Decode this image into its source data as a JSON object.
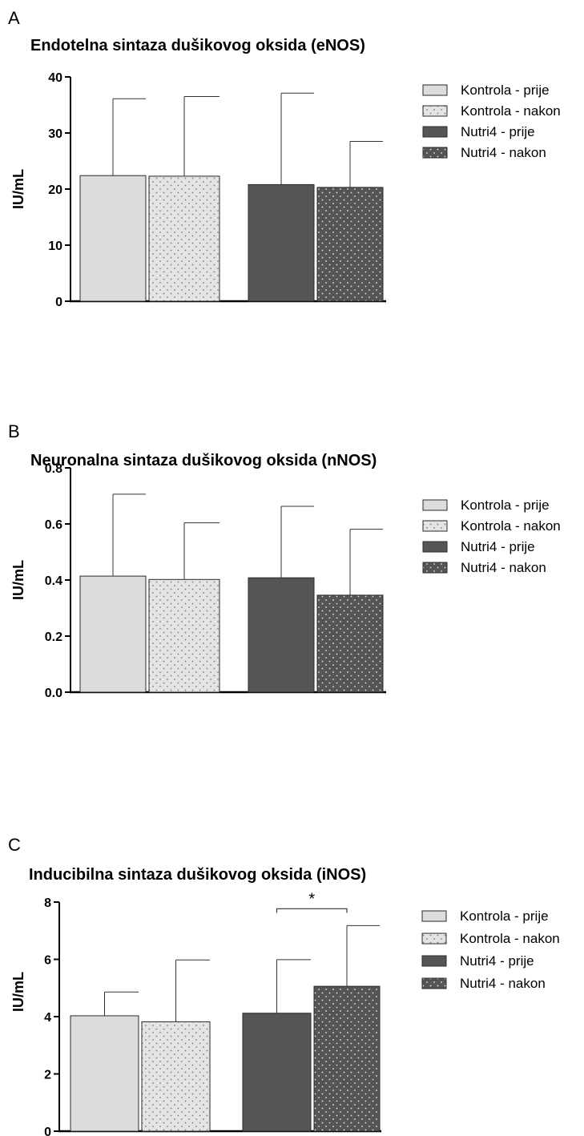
{
  "legend": {
    "series": [
      {
        "name": "Kontrola - prije",
        "fill": "#dcdcdc",
        "pattern": "none"
      },
      {
        "name": "Kontrola - nakon",
        "fill": "#e4e4e4",
        "pattern": "dots-dark"
      },
      {
        "name": "Nutri4 - prije",
        "fill": "#555555",
        "pattern": "none"
      },
      {
        "name": "Nutri4 - nakon",
        "fill": "#555555",
        "pattern": "dots-light"
      }
    ]
  },
  "chart_data": [
    {
      "type": "bar",
      "panel": "A",
      "title": "Endotelna sintaza dušikovog oksida (eNOS)",
      "ylabel": "IU/mL",
      "xlabel": "",
      "ylim": [
        0,
        40
      ],
      "yticks": [
        "0",
        "10",
        "20",
        "30",
        "40"
      ],
      "ytick_values": [
        0,
        10,
        20,
        30,
        40
      ],
      "series": [
        {
          "name": "Kontrola - prije",
          "value": 22.4,
          "error": 36.1
        },
        {
          "name": "Kontrola - nakon",
          "value": 22.3,
          "error": 36.5
        },
        {
          "name": "Nutri4 - prije",
          "value": 20.8,
          "error": 37.1
        },
        {
          "name": "Nutri4 - nakon",
          "value": 20.3,
          "error": 28.5
        }
      ],
      "significance": []
    },
    {
      "type": "bar",
      "panel": "B",
      "title": "Neuronalna sintaza dušikovog oksida (nNOS)",
      "ylabel": "IU/mL",
      "xlabel": "",
      "ylim": [
        0,
        0.8
      ],
      "yticks": [
        "0.0",
        "0.2",
        "0.4",
        "0.6",
        "0.8"
      ],
      "ytick_values": [
        0,
        0.2,
        0.4,
        0.6,
        0.8
      ],
      "series": [
        {
          "name": "Kontrola - prije",
          "value": 0.414,
          "error": 0.706
        },
        {
          "name": "Kontrola - nakon",
          "value": 0.402,
          "error": 0.604
        },
        {
          "name": "Nutri4 - prije",
          "value": 0.408,
          "error": 0.663
        },
        {
          "name": "Nutri4 - nakon",
          "value": 0.346,
          "error": 0.581
        }
      ],
      "significance": []
    },
    {
      "type": "bar",
      "panel": "C",
      "title": "Inducibilna sintaza dušikovog oksida (iNOS)",
      "ylabel": "IU/mL",
      "xlabel": "",
      "ylim": [
        0,
        8
      ],
      "yticks": [
        "0",
        "2",
        "4",
        "6",
        "8"
      ],
      "ytick_values": [
        0,
        2,
        4,
        6,
        8
      ],
      "series": [
        {
          "name": "Kontrola - prije",
          "value": 4.03,
          "error": 4.86
        },
        {
          "name": "Kontrola - nakon",
          "value": 3.82,
          "error": 5.98
        },
        {
          "name": "Nutri4 - prije",
          "value": 4.12,
          "error": 5.99
        },
        {
          "name": "Nutri4 - nakon",
          "value": 5.06,
          "error": 7.18
        }
      ],
      "significance": [
        {
          "from": 2,
          "to": 3,
          "label": "*"
        }
      ]
    }
  ]
}
